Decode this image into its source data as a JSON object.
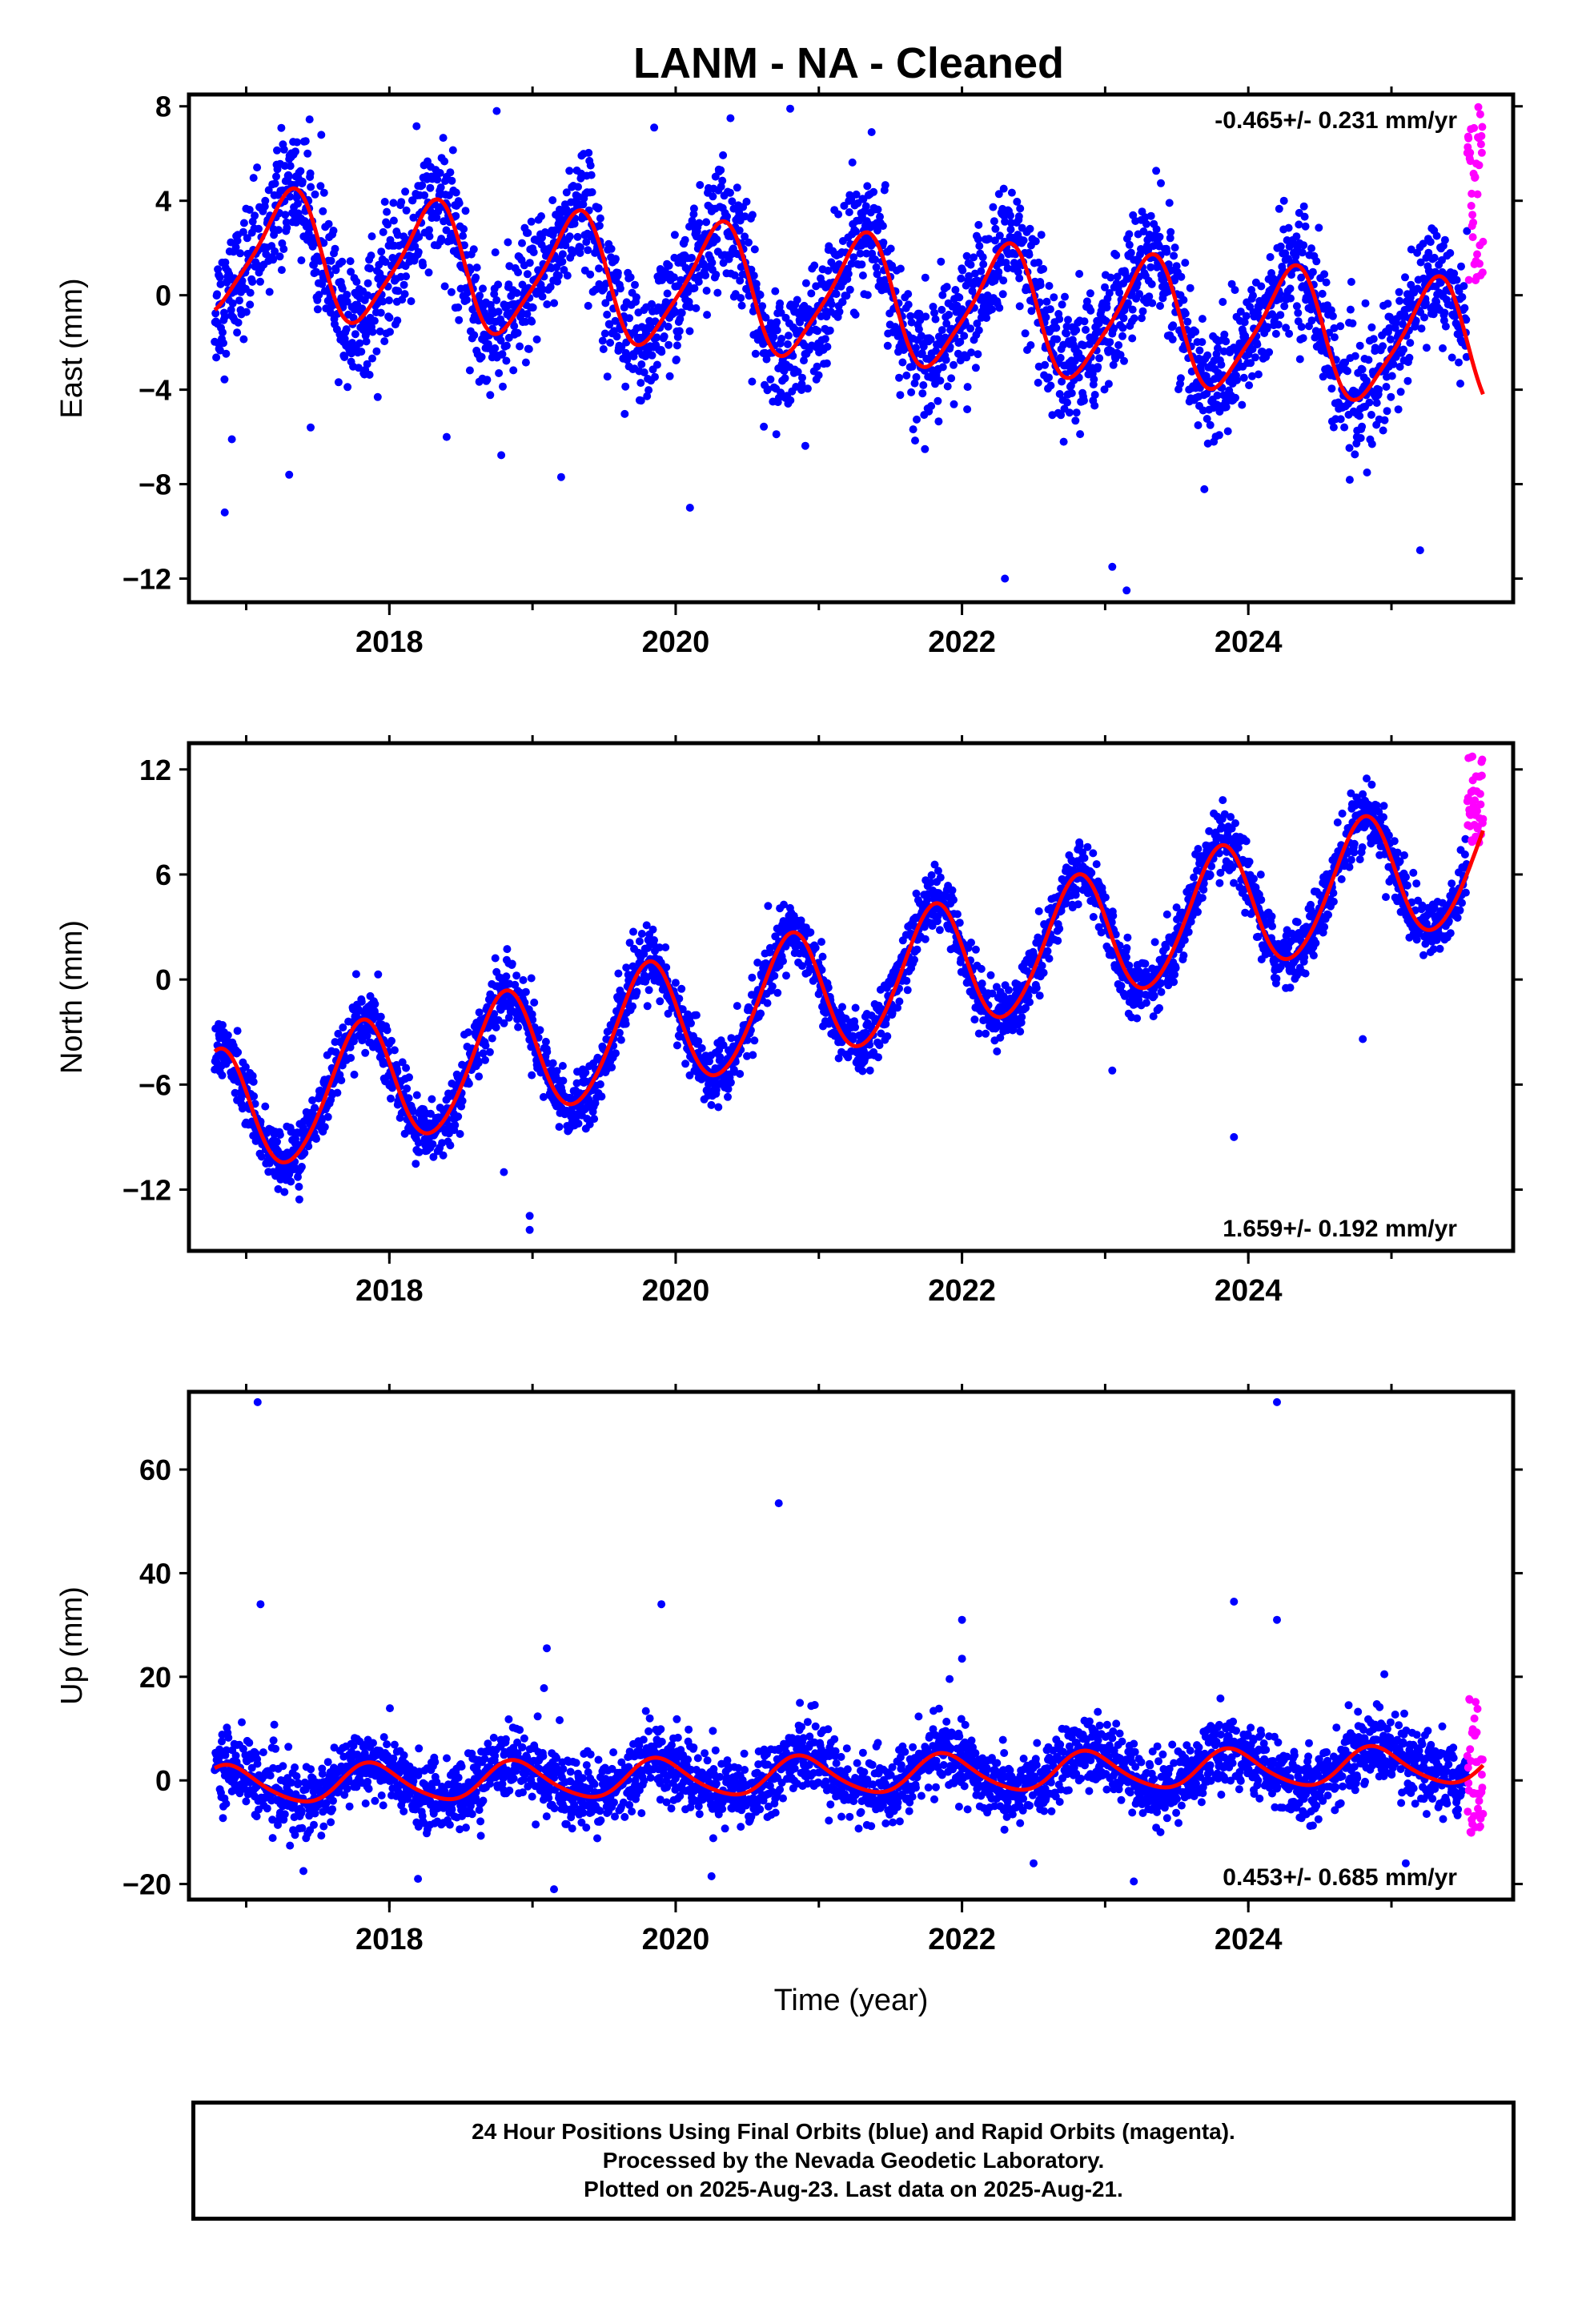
{
  "title": "LANM  - NA - Cleaned",
  "footer": {
    "line1": "24 Hour Positions Using Final Orbits (blue) and Rapid Orbits (magenta).",
    "line2": "Processed by the Nevada Geodetic Laboratory.",
    "line3": "Plotted on 2025-Aug-23. Last data on 2025-Aug-21."
  },
  "colors": {
    "final": "#0000ff",
    "rapid": "#ff00ff",
    "model": "#ff0000",
    "frame": "#000000"
  },
  "chart_data": [
    {
      "type": "scatter",
      "ylabel": "East (mm)",
      "xlabel": "",
      "rate_label": "-0.465+/- 0.231 mm/yr",
      "rate_position": "top-right",
      "xlim": [
        2016.6,
        2025.85
      ],
      "ylim": [
        -13,
        8.5
      ],
      "yticks": [
        -12,
        -8,
        -4,
        0,
        4,
        8
      ],
      "ytick_labels": [
        "−12",
        "−8",
        "−4",
        "0",
        "4",
        "8"
      ],
      "xticks": [
        2018,
        2020,
        2022,
        2024
      ],
      "xtick_labels": [
        "2018",
        "2020",
        "2022",
        "2024"
      ],
      "xminor": [
        2017,
        2018,
        2019,
        2020,
        2021,
        2022,
        2023,
        2024,
        2025
      ],
      "model": {
        "offset": 1.9,
        "rate_mm_per_yr": -0.465,
        "ref_year": 2016.8,
        "annual_amp": 2.6,
        "annual_phase": 3.1,
        "semiannual_amp": 0.5,
        "semiannual_phase": 1.2
      },
      "series": [
        {
          "name": "Final Orbits",
          "x_start": 2016.78,
          "x_end": 2025.53,
          "scatter_sd": 1.3
        },
        {
          "name": "Rapid Orbits",
          "x_start": 2025.53,
          "x_end": 2025.64,
          "y_range": [
            0.6,
            8.0
          ]
        }
      ],
      "outliers": [
        [
          2016.85,
          -9.2
        ],
        [
          2016.9,
          -6.1
        ],
        [
          2017.3,
          -7.6
        ],
        [
          2018.4,
          -6.0
        ],
        [
          2018.75,
          7.8
        ],
        [
          2019.2,
          -7.7
        ],
        [
          2019.85,
          7.1
        ],
        [
          2020.1,
          -9.0
        ],
        [
          2020.8,
          7.9
        ],
        [
          2022.3,
          -12.0
        ],
        [
          2023.05,
          -11.5
        ],
        [
          2023.15,
          -12.5
        ],
        [
          2025.2,
          -10.8
        ],
        [
          2017.45,
          -5.6
        ]
      ]
    },
    {
      "type": "scatter",
      "ylabel": "North (mm)",
      "xlabel": "",
      "rate_label": "1.659+/- 0.192 mm/yr",
      "rate_position": "bottom-right",
      "xlim": [
        2016.6,
        2025.85
      ],
      "ylim": [
        -15.5,
        13.5
      ],
      "yticks": [
        -12,
        -6,
        0,
        6,
        12
      ],
      "ytick_labels": [
        "−12",
        "−6",
        "0",
        "6",
        "12"
      ],
      "xticks": [
        2018,
        2020,
        2022,
        2024
      ],
      "xtick_labels": [
        "2018",
        "2020",
        "2022",
        "2024"
      ],
      "xminor": [
        2017,
        2018,
        2019,
        2020,
        2021,
        2022,
        2023,
        2024,
        2025
      ],
      "model": {
        "offset": -7.8,
        "rate_mm_per_yr": 1.659,
        "ref_year": 2016.8,
        "annual_amp": 3.6,
        "annual_phase": 0.0,
        "semiannual_amp": 0.3,
        "semiannual_phase": 0.8
      },
      "series": [
        {
          "name": "Final Orbits",
          "x_start": 2016.78,
          "x_end": 2025.53,
          "scatter_sd": 0.9
        },
        {
          "name": "Rapid Orbits",
          "x_start": 2025.53,
          "x_end": 2025.64,
          "y_range": [
            7.8,
            12.8
          ]
        }
      ],
      "outliers": [
        [
          2018.98,
          -14.3
        ],
        [
          2018.98,
          -13.5
        ],
        [
          2018.8,
          -11.0
        ],
        [
          2023.9,
          -9.0
        ],
        [
          2024.8,
          -3.4
        ],
        [
          2023.05,
          -5.2
        ]
      ]
    },
    {
      "type": "scatter",
      "ylabel": "Up (mm)",
      "xlabel": "Time (year)",
      "rate_label": "0.453+/- 0.685 mm/yr",
      "rate_position": "bottom-right",
      "xlim": [
        2016.6,
        2025.85
      ],
      "ylim": [
        -23,
        75
      ],
      "yticks": [
        -20,
        0,
        20,
        40,
        60
      ],
      "ytick_labels": [
        "−20",
        "0",
        "20",
        "40",
        "60"
      ],
      "xticks": [
        2018,
        2020,
        2022,
        2024
      ],
      "xtick_labels": [
        "2018",
        "2020",
        "2022",
        "2024"
      ],
      "xminor": [
        2017,
        2018,
        2019,
        2020,
        2021,
        2022,
        2023,
        2024,
        2025
      ],
      "model": {
        "offset": -1.0,
        "rate_mm_per_yr": 0.453,
        "ref_year": 2016.8,
        "annual_amp": 3.6,
        "annual_phase": 0.5,
        "semiannual_amp": 0.5,
        "semiannual_phase": 0.2
      },
      "series": [
        {
          "name": "Final Orbits",
          "x_start": 2016.78,
          "x_end": 2025.53,
          "scatter_sd": 3.4
        },
        {
          "name": "Rapid Orbits",
          "x_start": 2025.53,
          "x_end": 2025.64,
          "y_range": [
            -11,
            16
          ]
        }
      ],
      "outliers": [
        [
          2017.08,
          73
        ],
        [
          2017.1,
          34
        ],
        [
          2020.72,
          53.5
        ],
        [
          2019.9,
          34
        ],
        [
          2019.1,
          25.5
        ],
        [
          2019.08,
          17.8
        ],
        [
          2022.0,
          31
        ],
        [
          2022.0,
          23.5
        ],
        [
          2023.9,
          34.5
        ],
        [
          2024.2,
          31
        ],
        [
          2024.2,
          73
        ],
        [
          2024.95,
          20.5
        ],
        [
          2019.15,
          -21
        ],
        [
          2020.25,
          -18.5
        ],
        [
          2017.4,
          -17.5
        ],
        [
          2018.2,
          -19
        ],
        [
          2023.2,
          -19.5
        ],
        [
          2025.1,
          -16
        ],
        [
          2022.5,
          -16
        ]
      ]
    }
  ]
}
